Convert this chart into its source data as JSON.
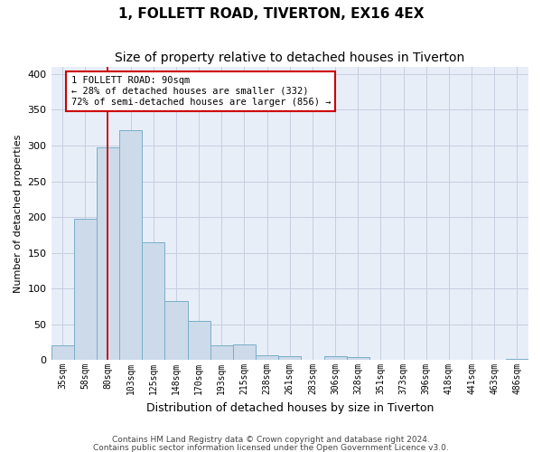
{
  "title": "1, FOLLETT ROAD, TIVERTON, EX16 4EX",
  "subtitle": "Size of property relative to detached houses in Tiverton",
  "xlabel": "Distribution of detached houses by size in Tiverton",
  "ylabel": "Number of detached properties",
  "footnote1": "Contains HM Land Registry data © Crown copyright and database right 2024.",
  "footnote2": "Contains public sector information licensed under the Open Government Licence v3.0.",
  "categories": [
    "35sqm",
    "58sqm",
    "80sqm",
    "103sqm",
    "125sqm",
    "148sqm",
    "170sqm",
    "193sqm",
    "215sqm",
    "238sqm",
    "261sqm",
    "283sqm",
    "306sqm",
    "328sqm",
    "351sqm",
    "373sqm",
    "396sqm",
    "418sqm",
    "441sqm",
    "463sqm",
    "486sqm"
  ],
  "values": [
    20,
    197,
    298,
    322,
    165,
    82,
    55,
    20,
    22,
    7,
    5,
    0,
    5,
    4,
    0,
    0,
    0,
    0,
    0,
    0,
    2
  ],
  "bar_color": "#ccdaea",
  "bar_edge_color": "#7aaec8",
  "grid_color": "#c5cfe0",
  "bg_color": "#e8eef8",
  "property_line_x": 2.0,
  "property_line_color": "#cc0000",
  "annotation_text": "1 FOLLETT ROAD: 90sqm\n← 28% of detached houses are smaller (332)\n72% of semi-detached houses are larger (856) →",
  "annotation_box_color": "white",
  "annotation_box_edge": "#cc0000",
  "ylim": [
    0,
    410
  ],
  "yticks": [
    0,
    50,
    100,
    150,
    200,
    250,
    300,
    350,
    400
  ],
  "title_fontsize": 11,
  "subtitle_fontsize": 10,
  "tick_fontsize": 7,
  "ylabel_fontsize": 8,
  "xlabel_fontsize": 9,
  "footnote_fontsize": 6.5
}
